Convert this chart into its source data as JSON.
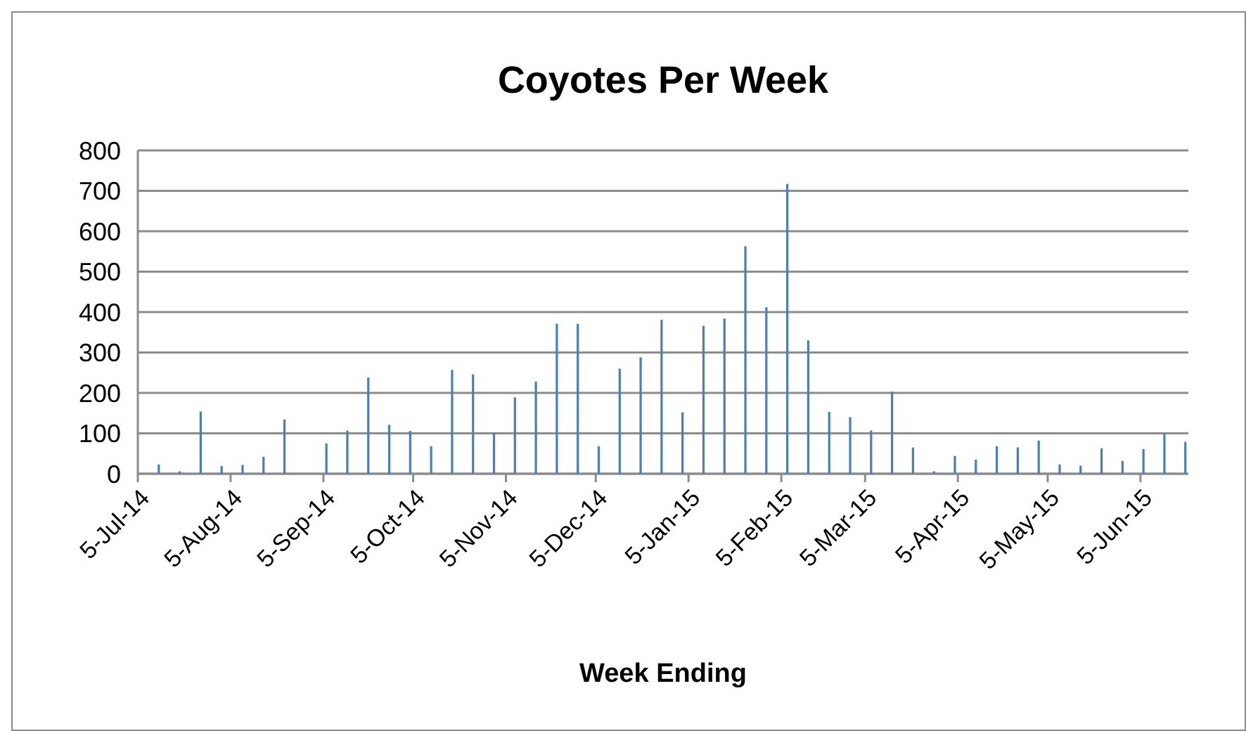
{
  "chart_data": {
    "type": "bar",
    "title": "Coyotes Per Week",
    "xlabel": "Week Ending",
    "x": [
      "2014-07-12",
      "2014-07-19",
      "2014-07-26",
      "2014-08-02",
      "2014-08-09",
      "2014-08-16",
      "2014-08-23",
      "2014-08-30",
      "2014-09-06",
      "2014-09-13",
      "2014-09-20",
      "2014-09-27",
      "2014-10-04",
      "2014-10-11",
      "2014-10-18",
      "2014-10-25",
      "2014-11-01",
      "2014-11-08",
      "2014-11-15",
      "2014-11-22",
      "2014-11-29",
      "2014-12-06",
      "2014-12-13",
      "2014-12-20",
      "2014-12-27",
      "2015-01-03",
      "2015-01-10",
      "2015-01-17",
      "2015-01-24",
      "2015-01-31",
      "2015-02-07",
      "2015-02-14",
      "2015-02-21",
      "2015-02-28",
      "2015-03-07",
      "2015-03-14",
      "2015-03-21",
      "2015-03-28",
      "2015-04-04",
      "2015-04-11",
      "2015-04-18",
      "2015-04-25",
      "2015-05-02",
      "2015-05-09",
      "2015-05-16",
      "2015-05-23",
      "2015-05-30",
      "2015-06-06",
      "2015-06-13",
      "2015-06-20"
    ],
    "values": [
      23,
      6,
      154,
      19,
      22,
      42,
      134,
      0,
      75,
      107,
      238,
      121,
      106,
      68,
      257,
      246,
      101,
      189,
      228,
      371,
      371,
      68,
      260,
      288,
      381,
      152,
      366,
      384,
      563,
      412,
      717,
      330,
      153,
      140,
      107,
      203,
      65,
      6,
      44,
      35,
      68,
      65,
      82,
      23,
      20,
      63,
      32,
      61,
      99,
      79
    ],
    "color": "#4a7ebb",
    "xlim": [
      "2014-07-05",
      "2015-06-21"
    ],
    "xticks": [
      {
        "value": "2014-07-05",
        "label": "5-Jul-14"
      },
      {
        "value": "2014-08-05",
        "label": "5-Aug-14"
      },
      {
        "value": "2014-09-05",
        "label": "5-Sep-14"
      },
      {
        "value": "2014-10-05",
        "label": "5-Oct-14"
      },
      {
        "value": "2014-11-05",
        "label": "5-Nov-14"
      },
      {
        "value": "2014-12-05",
        "label": "5-Dec-14"
      },
      {
        "value": "2015-01-05",
        "label": "5-Jan-15"
      },
      {
        "value": "2015-02-05",
        "label": "5-Feb-15"
      },
      {
        "value": "2015-03-05",
        "label": "5-Mar-15"
      },
      {
        "value": "2015-04-05",
        "label": "5-Apr-15"
      },
      {
        "value": "2015-05-05",
        "label": "5-May-15"
      },
      {
        "value": "2015-06-05",
        "label": "5-Jun-15"
      }
    ],
    "ylim": [
      0,
      800
    ],
    "yticks": [
      0,
      100,
      200,
      300,
      400,
      500,
      600,
      700,
      800
    ],
    "grid": "y"
  }
}
